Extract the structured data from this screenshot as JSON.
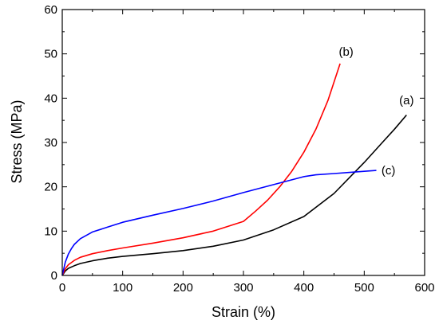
{
  "chart_data": {
    "type": "line",
    "xlabel": "Strain (%)",
    "ylabel": "Stress (MPa)",
    "xlim": [
      0,
      600
    ],
    "ylim": [
      0,
      60
    ],
    "xticks": [
      0,
      100,
      200,
      300,
      400,
      500,
      600
    ],
    "yticks": [
      0,
      10,
      20,
      30,
      40,
      50,
      60
    ],
    "grid": false,
    "series": [
      {
        "name": "(a)",
        "color": "#000000",
        "x": [
          0,
          5,
          10,
          20,
          30,
          50,
          75,
          100,
          150,
          200,
          250,
          300,
          350,
          400,
          450,
          500,
          530,
          550,
          570
        ],
        "y": [
          0,
          1,
          1.6,
          2.2,
          2.7,
          3.3,
          3.9,
          4.3,
          4.9,
          5.6,
          6.6,
          8.0,
          10.3,
          13.3,
          18.5,
          25.5,
          30.0,
          33.0,
          36.2
        ]
      },
      {
        "name": "(b)",
        "color": "#ff0000",
        "x": [
          0,
          5,
          10,
          20,
          30,
          50,
          75,
          100,
          150,
          200,
          250,
          300,
          320,
          340,
          360,
          380,
          400,
          420,
          440,
          460
        ],
        "y": [
          0,
          1.5,
          2.4,
          3.4,
          4.1,
          4.9,
          5.6,
          6.2,
          7.3,
          8.5,
          10.0,
          12.2,
          14.5,
          17.0,
          20.0,
          23.5,
          27.8,
          33.0,
          39.5,
          47.8
        ]
      },
      {
        "name": "(c)",
        "color": "#0000ff",
        "x": [
          0,
          5,
          10,
          15,
          20,
          30,
          50,
          75,
          100,
          150,
          200,
          250,
          300,
          350,
          400,
          420,
          450,
          480,
          500,
          520
        ],
        "y": [
          0,
          3.0,
          4.8,
          6.0,
          7.0,
          8.3,
          9.8,
          10.9,
          12.0,
          13.6,
          15.1,
          16.8,
          18.7,
          20.5,
          22.3,
          22.7,
          23.0,
          23.3,
          23.5,
          23.7
        ]
      }
    ],
    "annotations": [
      {
        "text": "(a)",
        "series": "(a)",
        "x": 570,
        "y": 39.5
      },
      {
        "text": "(b)",
        "series": "(b)",
        "x": 470,
        "y": 50.5
      },
      {
        "text": "(c)",
        "series": "(c)",
        "x": 540,
        "y": 23.7
      }
    ]
  }
}
